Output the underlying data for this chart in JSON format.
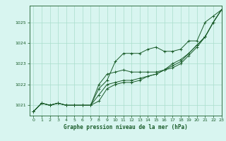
{
  "bg_color": "#d8f5f0",
  "grid_color": "#aaddcc",
  "line_color": "#1a5c2a",
  "xlabel": "Graphe pression niveau de la mer (hPa)",
  "xlim": [
    -0.5,
    23
  ],
  "ylim": [
    1020.5,
    1025.8
  ],
  "yticks": [
    1021,
    1022,
    1023,
    1024,
    1025
  ],
  "xticks": [
    0,
    1,
    2,
    3,
    4,
    5,
    6,
    7,
    8,
    9,
    10,
    11,
    12,
    13,
    14,
    15,
    16,
    17,
    18,
    19,
    20,
    21,
    22,
    23
  ],
  "series": [
    [
      1020.7,
      1021.1,
      1021.0,
      1021.1,
      1021.0,
      1021.0,
      1021.0,
      1021.0,
      1021.8,
      1022.2,
      1023.1,
      1023.5,
      1023.5,
      1023.5,
      1023.7,
      1023.8,
      1023.6,
      1023.6,
      1023.7,
      1024.1,
      1024.1,
      1025.0,
      1025.3,
      1025.6
    ],
    [
      1020.7,
      1021.1,
      1021.0,
      1021.1,
      1021.0,
      1021.0,
      1021.0,
      1021.0,
      1022.0,
      1022.5,
      1022.6,
      1022.7,
      1022.6,
      1022.6,
      1022.6,
      1022.6,
      1022.7,
      1022.8,
      1023.0,
      1023.4,
      1023.8,
      1024.3,
      1025.0,
      1025.6
    ],
    [
      1020.7,
      1021.1,
      1021.0,
      1021.1,
      1021.0,
      1021.0,
      1021.0,
      1021.0,
      1021.5,
      1022.0,
      1022.1,
      1022.2,
      1022.2,
      1022.3,
      1022.4,
      1022.5,
      1022.7,
      1022.9,
      1023.1,
      1023.5,
      1023.9,
      1024.3,
      1025.0,
      1025.6
    ],
    [
      1020.7,
      1021.1,
      1021.0,
      1021.1,
      1021.0,
      1021.0,
      1021.0,
      1021.0,
      1021.2,
      1021.8,
      1022.0,
      1022.1,
      1022.1,
      1022.2,
      1022.4,
      1022.5,
      1022.7,
      1023.0,
      1023.2,
      1023.5,
      1023.9,
      1024.3,
      1025.0,
      1025.6
    ]
  ]
}
